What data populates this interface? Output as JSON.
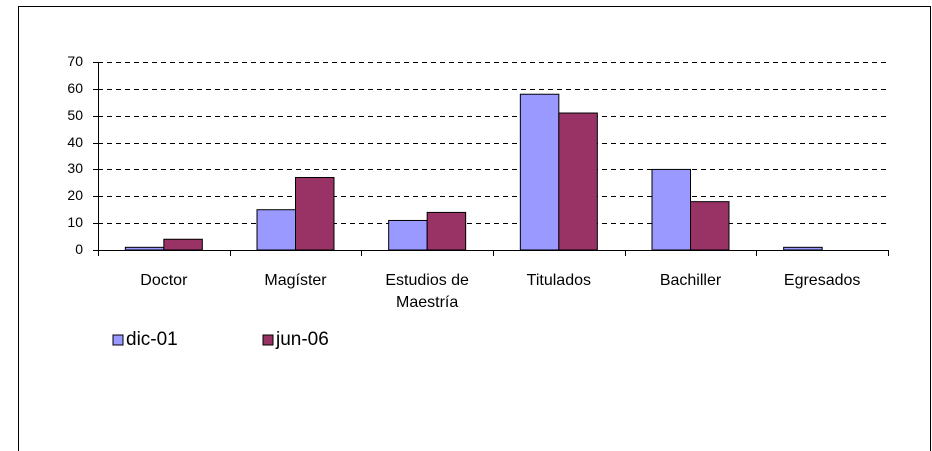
{
  "chart_data": {
    "type": "bar",
    "categories": [
      "Doctor",
      "Magíster",
      "Estudios de Maestría",
      "Titulados",
      "Bachiller",
      "Egresados"
    ],
    "series": [
      {
        "name": "dic-01",
        "color": "#9999ff",
        "values": [
          1,
          15,
          11,
          58,
          30,
          1
        ]
      },
      {
        "name": "jun-06",
        "color": "#993366",
        "values": [
          4,
          27,
          14,
          51,
          18,
          0
        ]
      }
    ],
    "ylim": [
      0,
      70
    ],
    "yticks": [
      0,
      10,
      20,
      30,
      40,
      50,
      60,
      70
    ],
    "grid": true,
    "legend": "bottom-left"
  }
}
